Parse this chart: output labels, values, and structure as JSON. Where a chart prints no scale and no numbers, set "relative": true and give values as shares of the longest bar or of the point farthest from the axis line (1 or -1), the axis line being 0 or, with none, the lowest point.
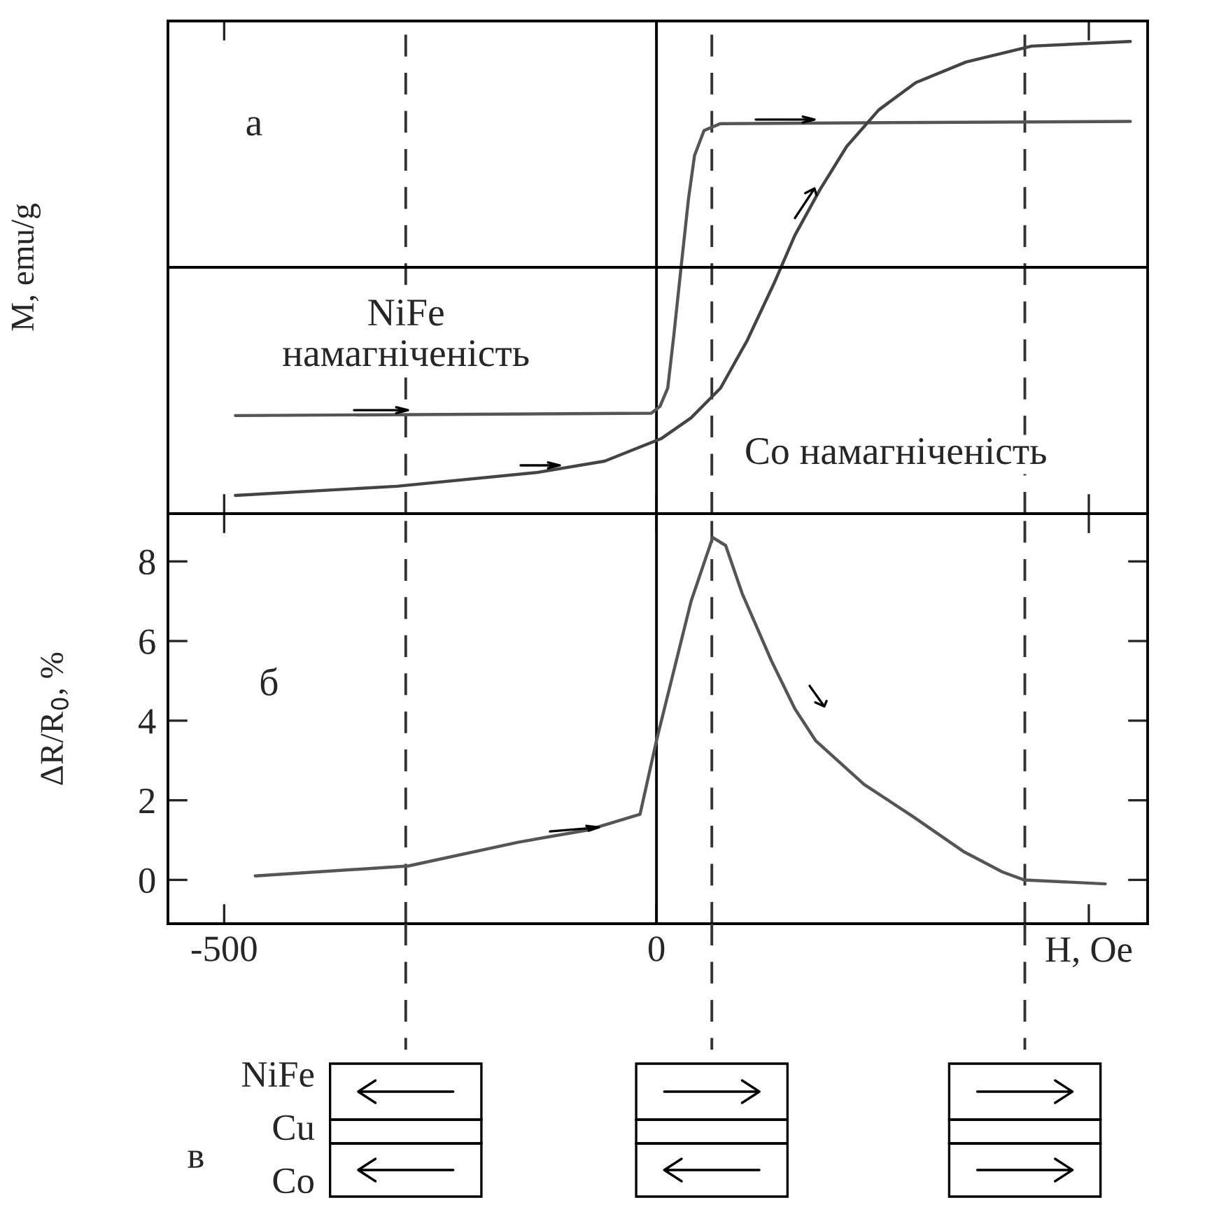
{
  "chart_data": [
    {
      "type": "line",
      "relative": true,
      "ylabel": "M, emu/g",
      "xlim": [
        -565,
        568
      ],
      "xticks": [
        -500,
        0,
        500
      ],
      "tick_labels": false,
      "annotations": [
        "а",
        "NiFe\nнамагніченість",
        "Co намагніченість"
      ],
      "ref_lines": [
        {
          "axis": "x",
          "value": 0,
          "line_style": "solid",
          "color": "#000000"
        },
        {
          "axis": "x",
          "value": -290,
          "line_style": "dashed",
          "color": "#333333"
        },
        {
          "axis": "x",
          "value": 64,
          "line_style": "dashed",
          "color": "#333333"
        },
        {
          "axis": "x",
          "value": 426,
          "line_style": "dashed",
          "color": "#333333"
        }
      ],
      "series": [
        {
          "color": "#555555",
          "x": [
            -487,
            -6,
            4,
            13,
            20,
            29,
            37,
            44,
            55,
            74,
            548
          ],
          "values": [
            -0.65,
            -0.64,
            -0.61,
            -0.53,
            -0.3,
            0.02,
            0.3,
            0.49,
            0.6,
            0.63,
            0.64
          ]
        },
        {
          "color": "#444444",
          "x": [
            -487,
            -300,
            -139,
            -60,
            6,
            40,
            74,
            105,
            136,
            160,
            189,
            220,
            257,
            300,
            358,
            434,
            548
          ],
          "values": [
            -1.0,
            -0.96,
            -0.9,
            -0.85,
            -0.75,
            -0.66,
            -0.53,
            -0.32,
            -0.07,
            0.14,
            0.34,
            0.53,
            0.69,
            0.81,
            0.9,
            0.97,
            0.99
          ]
        }
      ]
    },
    {
      "type": "line",
      "ylabel": "ΔR/R$_{0}$, %",
      "xlabel": "H, Oe",
      "xlim": [
        -565,
        568
      ],
      "ylim": [
        -1.1,
        9.2
      ],
      "xticks": [
        -500,
        0,
        {
          "value": 500,
          "label": null
        }
      ],
      "yticks": [
        0,
        2,
        4,
        6,
        8
      ],
      "annotations": [
        "б"
      ],
      "ref_lines": [
        {
          "axis": "x",
          "value": 0,
          "line_style": "solid",
          "color": "#000000"
        },
        {
          "axis": "x",
          "value": -290,
          "line_style": "dashed",
          "color": "#333333"
        },
        {
          "axis": "x",
          "value": 64,
          "line_style": "dashed",
          "color": "#333333"
        },
        {
          "axis": "x",
          "value": 426,
          "line_style": "dashed",
          "color": "#333333"
        }
      ],
      "series": [
        {
          "color": "#555555",
          "x": [
            -464,
            -287,
            -159,
            -80,
            -19,
            0,
            40,
            65,
            80,
            99,
            133,
            160,
            184,
            240,
            296,
            356,
            400,
            425,
            519
          ],
          "values": [
            0.1,
            0.35,
            0.95,
            1.25,
            1.65,
            3.5,
            7.0,
            8.6,
            8.4,
            7.2,
            5.5,
            4.3,
            3.5,
            2.4,
            1.6,
            0.7,
            0.2,
            0.0,
            -0.1
          ]
        }
      ]
    },
    {
      "type": "other",
      "annotations": [
        "в",
        "NiFe",
        "Cu",
        "Co"
      ]
    }
  ]
}
